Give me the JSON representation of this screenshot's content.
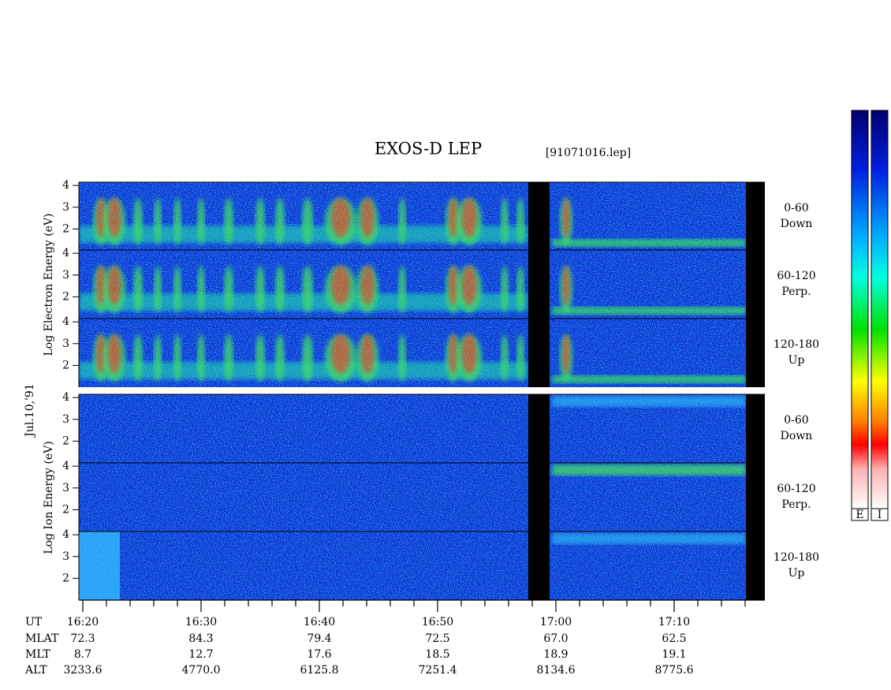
{
  "title": "EXOS-D LEP",
  "filename": "[91071016.lep]",
  "date": "Jul.10,'91",
  "electron_axis_label": "Log Electron Energy (eV)",
  "ion_axis_label": "Log Ion Energy (eV)",
  "yticks": [
    2,
    3,
    4
  ],
  "ylim": [
    1,
    4.15
  ],
  "pitch_angles": [
    {
      "range": "0-60",
      "direction": "Down"
    },
    {
      "range": "60-120",
      "direction": "Perp."
    },
    {
      "range": "120-180",
      "direction": "Up"
    }
  ],
  "colorbar_labels": [
    "E",
    "I"
  ],
  "ephemeris": {
    "rows": [
      {
        "label": "UT",
        "values": [
          "16:20",
          "16:30",
          "16:40",
          "16:50",
          "17:00",
          "17:10"
        ]
      },
      {
        "label": "MLAT",
        "values": [
          "72.3",
          "84.3",
          "79.4",
          "72.5",
          "67.0",
          "62.5"
        ]
      },
      {
        "label": "MLT",
        "values": [
          "8.7",
          "12.7",
          "17.6",
          "18.5",
          "18.9",
          "19.1"
        ]
      },
      {
        "label": "ALT",
        "values": [
          "3233.6",
          "4770.0",
          "6125.8",
          "7251.4",
          "8134.6",
          "8775.6"
        ]
      }
    ]
  }
}
